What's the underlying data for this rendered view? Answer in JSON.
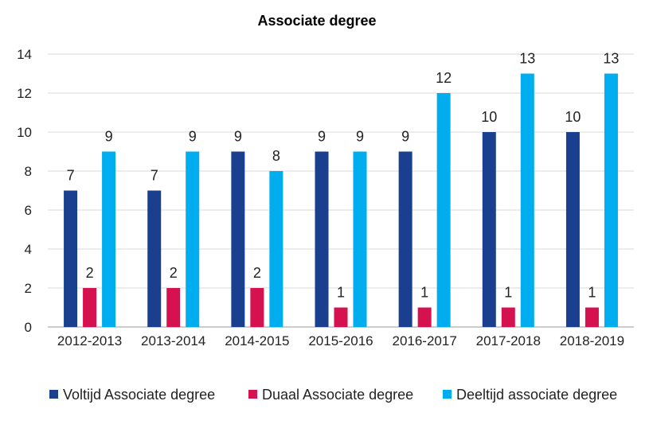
{
  "chart_data": {
    "type": "bar",
    "title": "Associate degree",
    "xlabel": "",
    "ylabel": "",
    "ylim": [
      0,
      14
    ],
    "yticks": [
      0,
      2,
      4,
      6,
      8,
      10,
      12,
      14
    ],
    "grid": true,
    "legend_position": "bottom",
    "categories": [
      "2012-2013",
      "2013-2014",
      "2014-2015",
      "2015-2016",
      "2016-2017",
      "2017-2018",
      "2018-2019"
    ],
    "series": [
      {
        "name": "Voltijd Associate degree",
        "color": "#1b3f8f",
        "values": [
          7,
          7,
          9,
          9,
          9,
          10,
          10
        ]
      },
      {
        "name": "Duaal Associate degree",
        "color": "#d5124f",
        "values": [
          2,
          2,
          2,
          1,
          1,
          1,
          1
        ]
      },
      {
        "name": "Deeltijd associate degree",
        "color": "#00adee",
        "values": [
          9,
          9,
          8,
          9,
          12,
          13,
          13
        ]
      }
    ]
  }
}
